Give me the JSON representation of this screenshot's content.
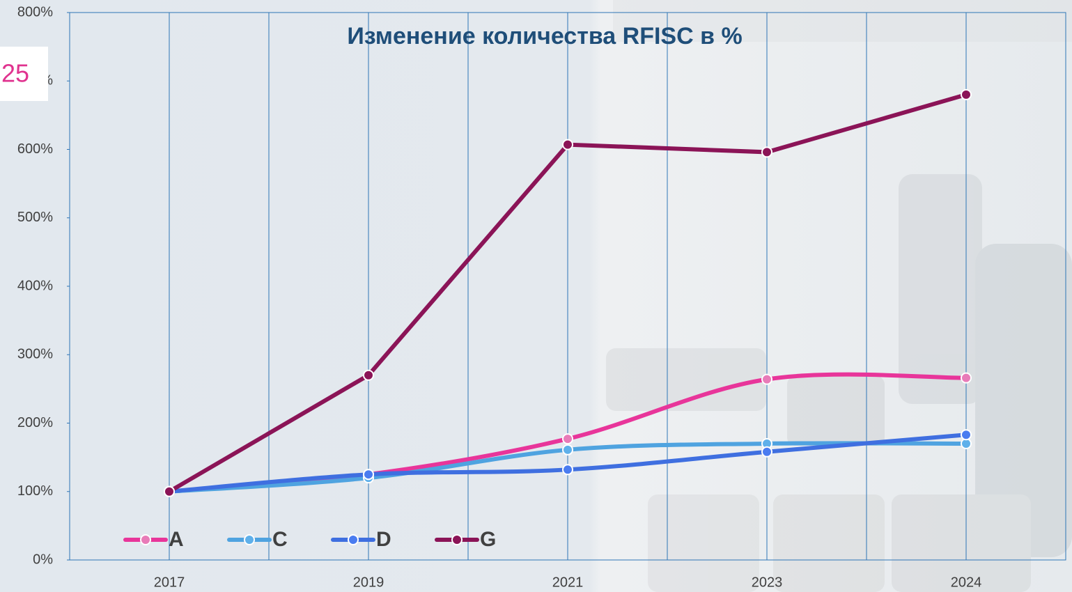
{
  "slide_number": "25",
  "chart_data": {
    "type": "line",
    "title": "Изменение количества RFISC в %",
    "categories": [
      "2017",
      "2019",
      "2021",
      "2023",
      "2024"
    ],
    "series": [
      {
        "name": "A",
        "color": "#e8359a",
        "marker_color": "#e87bb8",
        "smooth": true,
        "values": [
          100,
          125,
          177,
          264,
          266
        ]
      },
      {
        "name": "C",
        "color": "#4fa3e0",
        "marker_color": "#5fb0ea",
        "smooth": true,
        "values": [
          100,
          120,
          161,
          170,
          170
        ]
      },
      {
        "name": "D",
        "color": "#3f6fe0",
        "marker_color": "#4a7cf0",
        "smooth": true,
        "values": [
          100,
          125,
          132,
          158,
          183
        ]
      },
      {
        "name": "G",
        "color": "#8b1457",
        "marker_color": "#8b1457",
        "smooth": false,
        "values": [
          100,
          270,
          607,
          596,
          680
        ]
      }
    ],
    "ylim": [
      0,
      800
    ],
    "yticks": [
      {
        "value": 0,
        "label": "0%"
      },
      {
        "value": 100,
        "label": "100%"
      },
      {
        "value": 200,
        "label": "200%"
      },
      {
        "value": 300,
        "label": "300%"
      },
      {
        "value": 400,
        "label": "400%"
      },
      {
        "value": 500,
        "label": "500%"
      },
      {
        "value": 600,
        "label": "600%"
      },
      {
        "value": 700,
        "label": "700%"
      },
      {
        "value": 800,
        "label": "800%"
      }
    ],
    "grid": "vertical",
    "legend": "lower left"
  }
}
